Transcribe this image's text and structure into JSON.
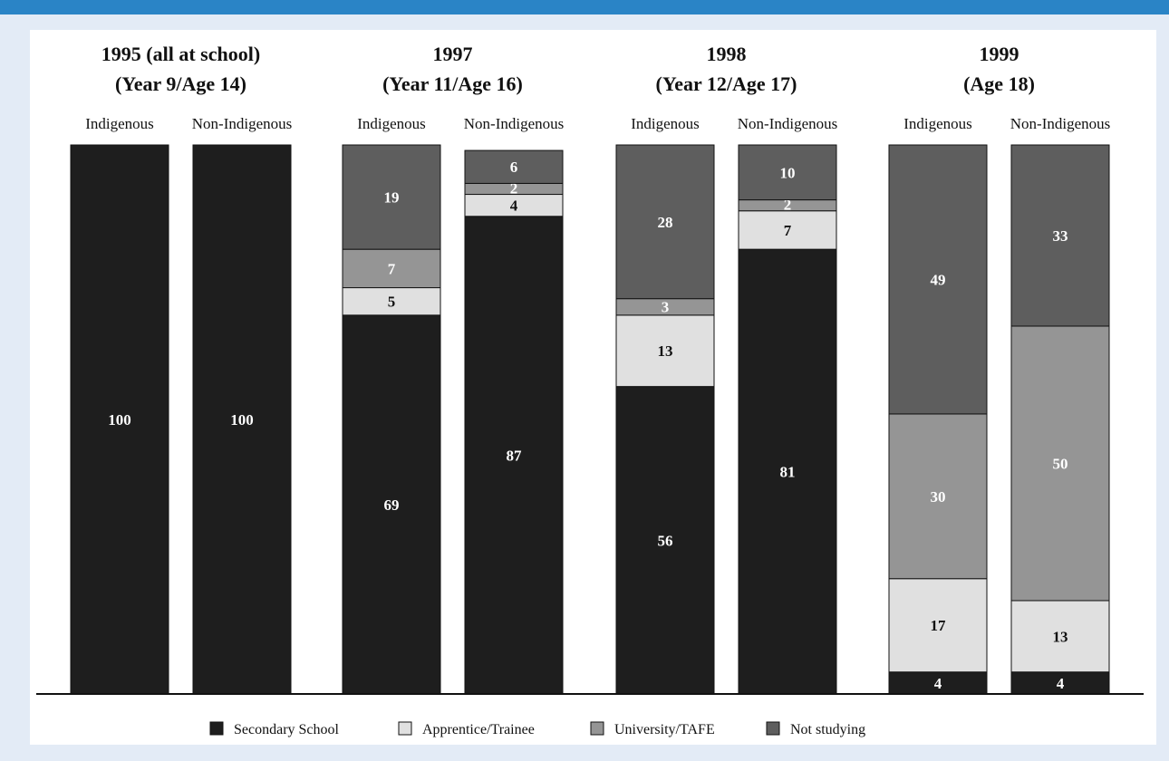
{
  "colors": {
    "secondary": "#1e1e1e",
    "apprentice": "#e0e0e0",
    "university": "#959595",
    "not_studying": "#5e5e5e",
    "header_bar": "#2a84c6",
    "frame": "#e3ebf6"
  },
  "chart_data": {
    "type": "bar",
    "stacked": true,
    "ylim": [
      0,
      100
    ],
    "grid": false,
    "legend_position": "bottom",
    "legend": [
      {
        "key": "secondary",
        "label": "Secondary School"
      },
      {
        "key": "apprentice",
        "label": "Apprentice/Trainee"
      },
      {
        "key": "university",
        "label": "University/TAFE"
      },
      {
        "key": "not_studying",
        "label": "Not studying"
      }
    ],
    "groups": [
      {
        "title_line1": "1995 (all at school)",
        "title_line2": "(Year 9/Age 14)",
        "bars": [
          {
            "label": "Indigenous",
            "values": {
              "secondary": 100,
              "apprentice": 0,
              "university": 0,
              "not_studying": 0
            }
          },
          {
            "label": "Non-Indigenous",
            "values": {
              "secondary": 100,
              "apprentice": 0,
              "university": 0,
              "not_studying": 0
            }
          }
        ]
      },
      {
        "title_line1": "1997",
        "title_line2": "(Year 11/Age 16)",
        "bars": [
          {
            "label": "Indigenous",
            "values": {
              "secondary": 69,
              "apprentice": 5,
              "university": 7,
              "not_studying": 19
            }
          },
          {
            "label": "Non-Indigenous",
            "values": {
              "secondary": 87,
              "apprentice": 4,
              "university": 2,
              "not_studying": 6
            }
          }
        ]
      },
      {
        "title_line1": "1998",
        "title_line2": "(Year 12/Age 17)",
        "bars": [
          {
            "label": "Indigenous",
            "values": {
              "secondary": 56,
              "apprentice": 13,
              "university": 3,
              "not_studying": 28
            }
          },
          {
            "label": "Non-Indigenous",
            "values": {
              "secondary": 81,
              "apprentice": 7,
              "university": 2,
              "not_studying": 10
            }
          }
        ]
      },
      {
        "title_line1": "1999",
        "title_line2": "(Age 18)",
        "bars": [
          {
            "label": "Indigenous",
            "values": {
              "secondary": 4,
              "apprentice": 17,
              "university": 30,
              "not_studying": 49
            }
          },
          {
            "label": "Non-Indigenous",
            "values": {
              "secondary": 4,
              "apprentice": 13,
              "university": 50,
              "not_studying": 33
            }
          }
        ]
      }
    ]
  }
}
